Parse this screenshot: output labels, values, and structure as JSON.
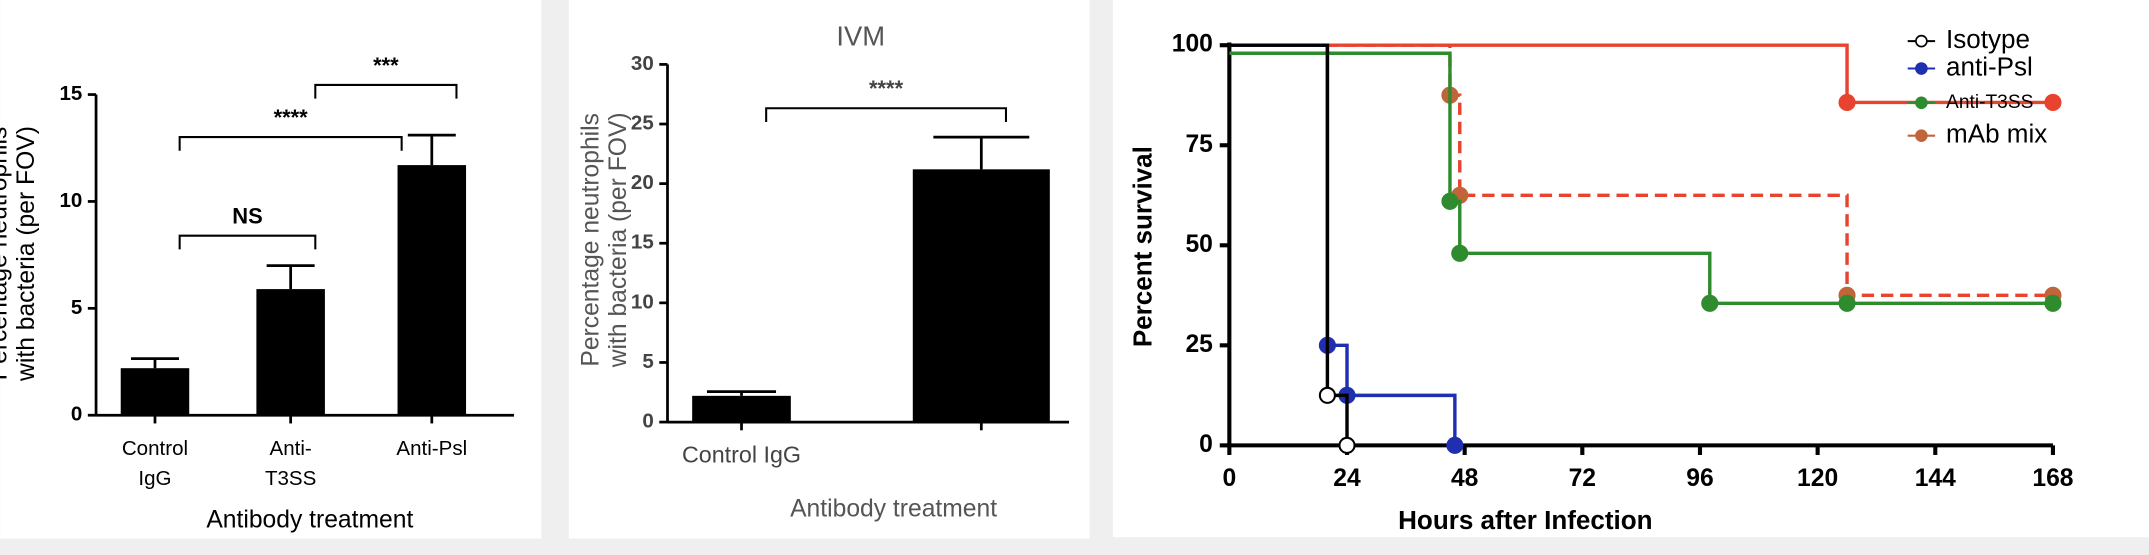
{
  "chart_data": [
    {
      "type": "bar",
      "ylabel": [
        "Percentage neutrophils",
        "with bacteria (per FOV)"
      ],
      "xlabel": "Antibody treatment",
      "categories": [
        [
          "Control",
          "IgG"
        ],
        [
          "Anti-",
          "T3SS"
        ],
        [
          "Anti-Psl"
        ]
      ],
      "values": [
        2.2,
        5.9,
        11.7
      ],
      "errors": [
        0.45,
        1.1,
        1.4
      ],
      "color": "#000000",
      "ylim": [
        0,
        15
      ],
      "yticks": [
        0,
        5,
        10,
        15
      ],
      "annotations": [
        {
          "text": "NS",
          "from": 0,
          "to": 1
        },
        {
          "text": "****",
          "from": 0,
          "to": 2
        },
        {
          "text": "***",
          "from": 1,
          "to": 2
        }
      ]
    },
    {
      "type": "bar",
      "title": "IVM",
      "ylabel": [
        "Percentage neutrophils",
        "with bacteria (per FOV)"
      ],
      "xlabel": "Antibody treatment",
      "categories": [
        "Control IgG",
        null
      ],
      "values": [
        2.2,
        21.2
      ],
      "errors": [
        0.35,
        2.7
      ],
      "color": "#000000",
      "ylim": [
        0,
        30
      ],
      "yticks": [
        0,
        5,
        10,
        15,
        20,
        25,
        30
      ],
      "annotations": [
        {
          "text": "****",
          "from": 0,
          "to": 1
        }
      ]
    },
    {
      "type": "line",
      "step": true,
      "ylabel": "Percent survival",
      "xlabel": "Hours after Infection",
      "xlim": [
        0,
        168
      ],
      "xticks": [
        0,
        24,
        48,
        72,
        96,
        120,
        144,
        168
      ],
      "ylim": [
        0,
        100
      ],
      "yticks": [
        0,
        25,
        50,
        75,
        100
      ],
      "series": [
        {
          "name": "Isotype",
          "color": "#000000",
          "marker_fill": "#ffffff",
          "x": [
            0,
            20,
            24
          ],
          "values": [
            100,
            12.5,
            0
          ]
        },
        {
          "name": "anti-Psl",
          "color": "#1f2fb0",
          "x": [
            0,
            20,
            24,
            46
          ],
          "values": [
            100,
            25,
            12.5,
            0
          ]
        },
        {
          "name": "Anti-T3SS",
          "color": "#2e8b2e",
          "x": [
            0,
            45,
            47,
            98,
            126,
            168
          ],
          "values": [
            98,
            61,
            48,
            35.5,
            35.5,
            35.5
          ]
        },
        {
          "name": "mAb mix",
          "color": "#e8432e",
          "marker_color": "#c0643a",
          "dash": true,
          "x": [
            0,
            45,
            47,
            126,
            168
          ],
          "values": [
            100,
            87.5,
            62.5,
            37.5,
            37.5
          ]
        },
        {
          "color": "#e8432e",
          "x": [
            0,
            126,
            168
          ],
          "values": [
            100,
            85.7,
            85.7
          ]
        }
      ]
    }
  ]
}
